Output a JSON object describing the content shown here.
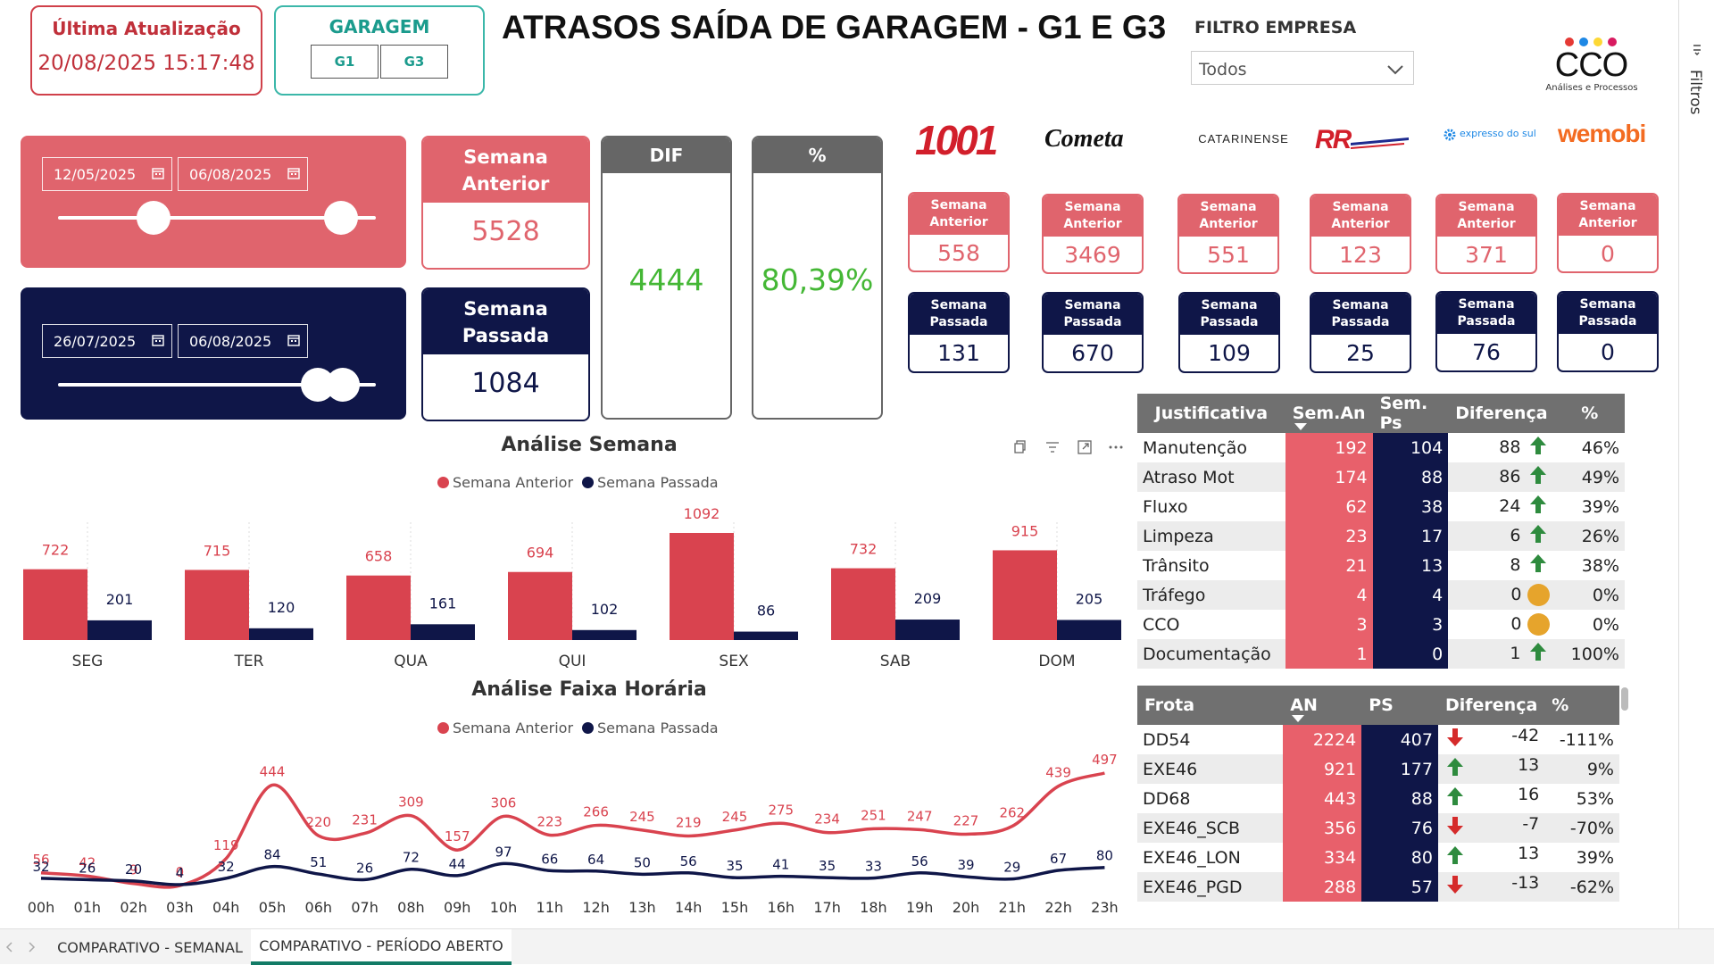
{
  "header": {
    "last_update_label": "Última Atualização",
    "last_update_value": "20/08/2025 15:17:48",
    "garage_label": "GARAGEM",
    "garage_options": [
      "G1",
      "G3"
    ],
    "title": "ATRASOS SAÍDA DE GARAGEM - G1 E G3",
    "filter_label": "FILTRO EMPRESA",
    "filter_value": "Todos"
  },
  "logo": {
    "text": "CCO",
    "subtitle": "Análises e Processos",
    "dot_colors": [
      "#e53935",
      "#1e88e5",
      "#fdd835",
      "#d81b60"
    ]
  },
  "filters_pane_label": "Filtros",
  "date_filters": {
    "previous": {
      "start": "12/05/2025",
      "end": "06/08/2025"
    },
    "last": {
      "start": "26/07/2025",
      "end": "06/08/2025"
    }
  },
  "kpis": {
    "semana_anterior_label": "Semana Anterior",
    "semana_anterior_value": "5528",
    "semana_passada_label": "Semana Passada",
    "semana_passada_value": "1084",
    "dif_label": "DIF",
    "dif_value": "4444",
    "pct_label": "%",
    "pct_value": "80,39%"
  },
  "companies": [
    {
      "logo": "1001",
      "anterior": "558",
      "passada": "131"
    },
    {
      "logo": "Cometa",
      "anterior": "3469",
      "passada": "670"
    },
    {
      "logo": "CATARINENSE",
      "anterior": "551",
      "passada": "109"
    },
    {
      "logo": "RR",
      "anterior": "123",
      "passada": "25"
    },
    {
      "logo": "expresso do sul",
      "anterior": "371",
      "passada": "76"
    },
    {
      "logo": "wemobi",
      "anterior": "0",
      "passada": "0"
    }
  ],
  "company_card_labels": {
    "anterior": "Semana Anterior",
    "passada": "Semana Passada"
  },
  "colors": {
    "red": "#e05b66",
    "navy": "#0f1648",
    "bar_red": "#d9434f",
    "green": "#44b735"
  },
  "chart_data": [
    {
      "type": "bar",
      "title": "Análise Semana",
      "categories": [
        "SEG",
        "TER",
        "QUA",
        "QUI",
        "SEX",
        "SAB",
        "DOM"
      ],
      "series": [
        {
          "name": "Semana Anterior",
          "values": [
            722,
            715,
            658,
            694,
            1092,
            732,
            915
          ]
        },
        {
          "name": "Semana Passada",
          "values": [
            201,
            120,
            161,
            102,
            86,
            209,
            205
          ]
        }
      ],
      "legend": "top-center"
    },
    {
      "type": "line",
      "title": "Análise Faixa Horária",
      "categories": [
        "00h",
        "01h",
        "02h",
        "03h",
        "04h",
        "05h",
        "06h",
        "07h",
        "08h",
        "09h",
        "10h",
        "11h",
        "12h",
        "13h",
        "14h",
        "15h",
        "16h",
        "17h",
        "18h",
        "19h",
        "20h",
        "21h",
        "22h",
        "23h"
      ],
      "series": [
        {
          "name": "Semana Anterior",
          "values": [
            56,
            42,
            9,
            0,
            119,
            444,
            220,
            231,
            309,
            157,
            306,
            223,
            266,
            245,
            219,
            245,
            275,
            234,
            251,
            247,
            227,
            262,
            439,
            497
          ]
        },
        {
          "name": "Semana Passada",
          "values": [
            32,
            26,
            20,
            4,
            32,
            84,
            51,
            26,
            72,
            44,
            97,
            66,
            64,
            50,
            56,
            35,
            41,
            35,
            33,
            56,
            39,
            29,
            67,
            80
          ]
        }
      ],
      "legend": "top-center"
    }
  ],
  "justificativa_table": {
    "headers": [
      "Justificativa",
      "Sem.An",
      "Sem. Ps",
      "Diferença",
      "%"
    ],
    "rows": [
      {
        "label": "Manutenção",
        "an": "192",
        "ps": "104",
        "diff": "88",
        "icon": "up-arrow-icon",
        "pct": "46%"
      },
      {
        "label": "Atraso Mot",
        "an": "174",
        "ps": "88",
        "diff": "86",
        "icon": "up-arrow-icon",
        "pct": "49%"
      },
      {
        "label": "Fluxo",
        "an": "62",
        "ps": "38",
        "diff": "24",
        "icon": "up-arrow-icon",
        "pct": "39%"
      },
      {
        "label": "Limpeza",
        "an": "23",
        "ps": "17",
        "diff": "6",
        "icon": "up-arrow-icon",
        "pct": "26%"
      },
      {
        "label": "Trânsito",
        "an": "21",
        "ps": "13",
        "diff": "8",
        "icon": "up-arrow-icon",
        "pct": "38%"
      },
      {
        "label": "Tráfego",
        "an": "4",
        "ps": "4",
        "diff": "0",
        "icon": "neutral-circle-icon",
        "pct": "0%"
      },
      {
        "label": "CCO",
        "an": "3",
        "ps": "3",
        "diff": "0",
        "icon": "neutral-circle-icon",
        "pct": "0%"
      },
      {
        "label": "Documentação",
        "an": "1",
        "ps": "0",
        "diff": "1",
        "icon": "up-arrow-icon",
        "pct": "100%"
      }
    ]
  },
  "frota_table": {
    "headers": [
      "Frota",
      "AN",
      "PS",
      "Diferença",
      "%"
    ],
    "rows": [
      {
        "label": "DD54",
        "an": "2224",
        "ps": "407",
        "icon": "down-arrow-icon",
        "diff": "-42",
        "pct": "-111%"
      },
      {
        "label": "EXE46",
        "an": "921",
        "ps": "177",
        "icon": "up-arrow-icon",
        "diff": "13",
        "pct": "9%"
      },
      {
        "label": "DD68",
        "an": "443",
        "ps": "88",
        "icon": "up-arrow-icon",
        "diff": "16",
        "pct": "53%"
      },
      {
        "label": "EXE46_SCB",
        "an": "356",
        "ps": "76",
        "icon": "down-arrow-icon",
        "diff": "-7",
        "pct": "-70%"
      },
      {
        "label": "EXE46_LON",
        "an": "334",
        "ps": "80",
        "icon": "up-arrow-icon",
        "diff": "13",
        "pct": "39%"
      },
      {
        "label": "EXE46_PGD",
        "an": "288",
        "ps": "57",
        "icon": "down-arrow-icon",
        "diff": "-13",
        "pct": "-62%"
      }
    ]
  },
  "tabs": [
    {
      "label": "COMPARATIVO - SEMANAL",
      "active": false
    },
    {
      "label": "COMPARATIVO - PERÍODO ABERTO",
      "active": true
    }
  ]
}
